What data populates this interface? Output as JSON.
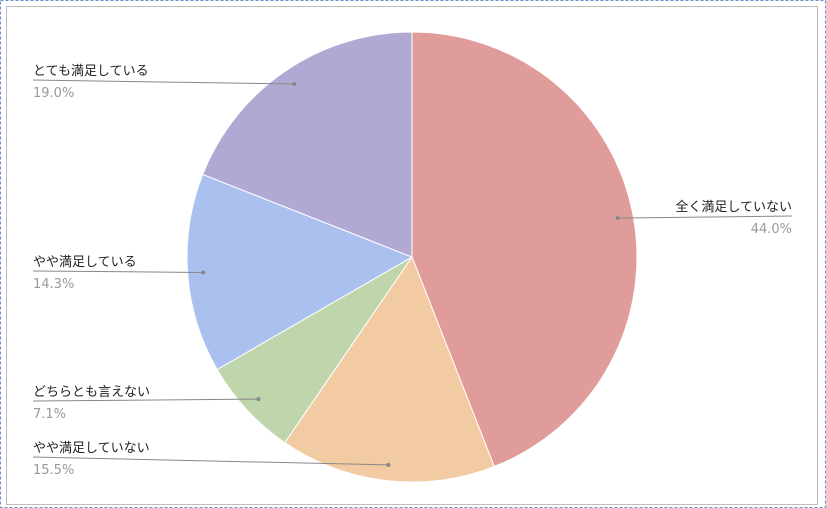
{
  "chart_data": {
    "type": "pie",
    "categories": [
      "全く満足していない",
      "やや満足していない",
      "どちらとも言えない",
      "やや満足している",
      "とても満足している"
    ],
    "values": [
      44.0,
      15.5,
      7.1,
      14.3,
      19.0
    ],
    "value_labels": [
      "44.0%",
      "15.5%",
      "7.1%",
      "14.3%",
      "19.0%"
    ],
    "colors": [
      "#e09c9a",
      "#f3cba2",
      "#bfd6ad",
      "#aac1ef",
      "#b1a8d3"
    ]
  }
}
